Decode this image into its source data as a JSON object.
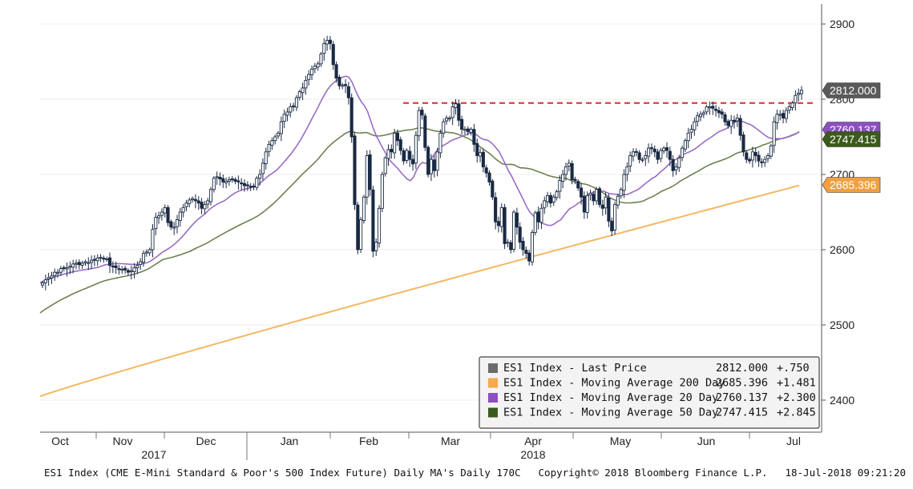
{
  "footer": {
    "description": "ES1 Index (CME E-Mini Standard & Poor's 500 Index Future) Daily MA's  Daily 170C",
    "copyright": "Copyright© 2018 Bloomberg Finance L.P.",
    "timestamp": "18-Jul-2018 09:21:20"
  },
  "colors": {
    "up_candle": "#ffffff",
    "down_candle": "#1a2a44",
    "ma200": "#f3b863",
    "ma20": "#9a6cc6",
    "ma50": "#6e8051",
    "resistance": "#e02a2a",
    "last_price_tag": "#5a5a5a"
  },
  "chart_data": {
    "type": "candlestick",
    "y_axis_position": "right",
    "ylim": [
      2355,
      2925
    ],
    "yticks": [
      2400,
      2500,
      2600,
      2700,
      2800,
      2900
    ],
    "x_months": [
      "Oct",
      "Nov",
      "Dec",
      "Jan",
      "Feb",
      "Mar",
      "Apr",
      "May",
      "Jun",
      "Jul"
    ],
    "x_years": [
      {
        "label": "2017",
        "month": "Nov"
      },
      {
        "label": "2018",
        "month": "Apr"
      }
    ],
    "resistance_level": 2795,
    "legend": [
      {
        "name": "ES1 Index - Last Price",
        "value": "2812.000",
        "change": "+.750",
        "color": "#6b6b6b"
      },
      {
        "name": "ES1 Index - Moving Average 200 Day",
        "value": "2685.396",
        "change": "+1.481",
        "color": "#f3a94c"
      },
      {
        "name": "ES1 Index - Moving Average 20 Day",
        "value": "2760.137",
        "change": "+2.300",
        "color": "#8e4fc2"
      },
      {
        "name": "ES1 Index - Moving Average 50 Day",
        "value": "2747.415",
        "change": "+2.845",
        "color": "#3d5a1e"
      }
    ],
    "axis_tags": [
      {
        "label": "2812.000",
        "value": 2812,
        "color": "#5a5a5a"
      },
      {
        "label": "2760.137",
        "value": 2760.137,
        "color": "#8c4fc0"
      },
      {
        "label": "2747.415",
        "value": 2747.415,
        "color": "#3b5a1c"
      },
      {
        "label": "2685.396",
        "value": 2685.396,
        "color": "#f0a040"
      }
    ],
    "close_series": [
      2556,
      2560,
      2563,
      2565,
      2570,
      2570,
      2575,
      2575,
      2576,
      2578,
      2581,
      2582,
      2580,
      2582,
      2584,
      2583,
      2586,
      2586,
      2589,
      2590,
      2588,
      2588,
      2579,
      2578,
      2576,
      2574,
      2574,
      2573,
      2570,
      2572,
      2576,
      2579,
      2584,
      2595,
      2597,
      2600,
      2627,
      2643,
      2645,
      2650,
      2656,
      2636,
      2630,
      2630,
      2640,
      2650,
      2656,
      2662,
      2666,
      2668,
      2665,
      2662,
      2655,
      2660,
      2665,
      2680,
      2695,
      2697,
      2694,
      2690,
      2691,
      2693,
      2694,
      2691,
      2690,
      2688,
      2685,
      2685,
      2684,
      2684,
      2695,
      2700,
      2715,
      2730,
      2740,
      2745,
      2750,
      2755,
      2770,
      2780,
      2783,
      2790,
      2790,
      2802,
      2810,
      2815,
      2825,
      2833,
      2840,
      2844,
      2847,
      2860,
      2874,
      2878,
      2874,
      2846,
      2828,
      2818,
      2819,
      2818,
      2802,
      2750,
      2660,
      2600,
      2640,
      2670,
      2725,
      2680,
      2598,
      2610,
      2655,
      2700,
      2722,
      2733,
      2730,
      2755,
      2745,
      2732,
      2718,
      2732,
      2720,
      2714,
      2752,
      2785,
      2779,
      2736,
      2700,
      2720,
      2705,
      2730,
      2755,
      2770,
      2775,
      2775,
      2790,
      2794,
      2772,
      2760,
      2760,
      2757,
      2760,
      2740,
      2725,
      2729,
      2710,
      2702,
      2690,
      2670,
      2637,
      2632,
      2656,
      2608,
      2610,
      2600,
      2650,
      2630,
      2610,
      2600,
      2595,
      2585,
      2623,
      2649,
      2637,
      2655,
      2665,
      2672,
      2662,
      2670,
      2677,
      2692,
      2700,
      2710,
      2715,
      2693,
      2692,
      2682,
      2670,
      2650,
      2672,
      2675,
      2665,
      2680,
      2660,
      2655,
      2670,
      2638,
      2625,
      2660,
      2671,
      2680,
      2700,
      2710,
      2725,
      2730,
      2730,
      2720,
      2720,
      2725,
      2735,
      2735,
      2730,
      2720,
      2732,
      2735,
      2732,
      2720,
      2705,
      2710,
      2722,
      2735,
      2745,
      2755,
      2760,
      2770,
      2778,
      2780,
      2782,
      2790,
      2790,
      2788,
      2785,
      2782,
      2780,
      2770,
      2765,
      2772,
      2770,
      2775,
      2752,
      2730,
      2720,
      2718,
      2730,
      2725,
      2718,
      2716,
      2720,
      2725,
      2738,
      2770,
      2780,
      2780,
      2775,
      2785,
      2790,
      2795,
      2805,
      2808,
      2812
    ]
  }
}
